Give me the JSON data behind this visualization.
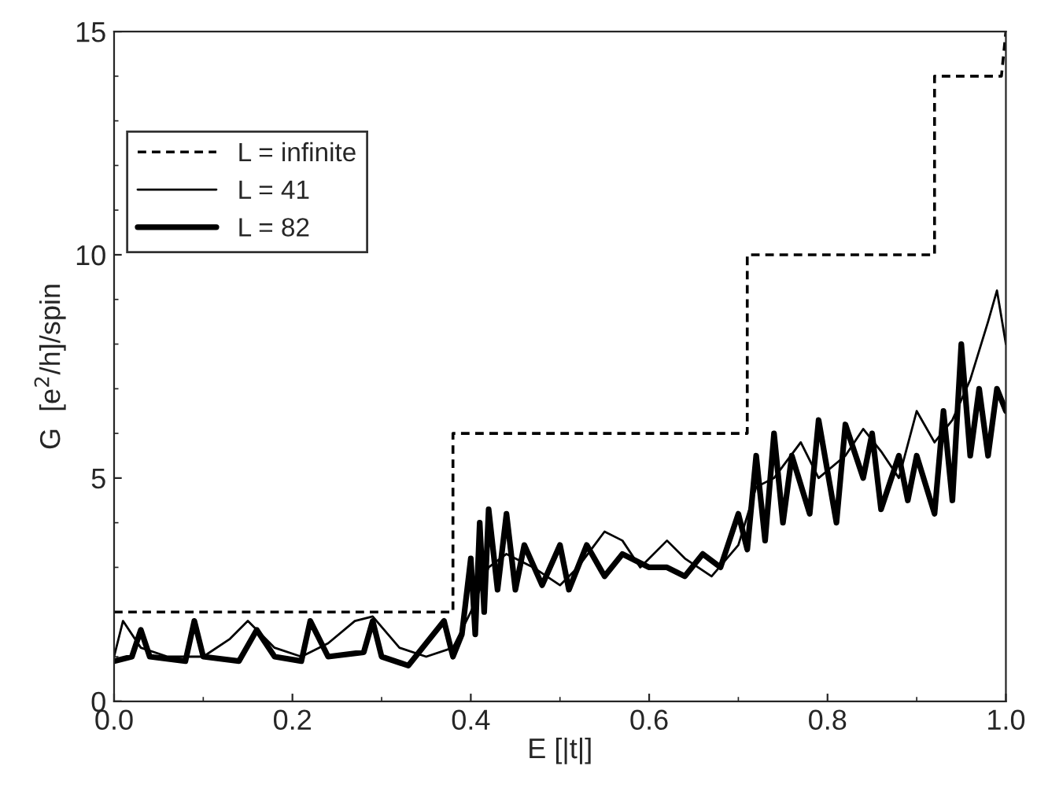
{
  "chart_data": {
    "type": "line",
    "xlabel": "E [|t|]",
    "ylabel": "G  [e$^{2}$/h]/spin",
    "xlim": [
      0.0,
      1.0
    ],
    "ylim": [
      0,
      15
    ],
    "xticks": [
      {
        "value": 0.0,
        "label": "0.0"
      },
      {
        "value": 0.2,
        "label": "0.2"
      },
      {
        "value": 0.4,
        "label": "0.4"
      },
      {
        "value": 0.6,
        "label": "0.6"
      },
      {
        "value": 0.8,
        "label": "0.8"
      },
      {
        "value": 1.0,
        "label": "1.0"
      }
    ],
    "yticks": [
      0,
      5,
      10,
      15
    ],
    "legend": "top left",
    "grid": false,
    "series": [
      {
        "name": "L = infinite",
        "color": "#000000",
        "line_style": "dashed",
        "x": [
          0,
          0.38,
          0.38,
          0.71,
          0.71,
          0.92,
          0.92,
          0.995,
          1.0
        ],
        "values": [
          2,
          2,
          6,
          6,
          10,
          10,
          14,
          14,
          15
        ]
      },
      {
        "name": "L = 41",
        "color": "#000000",
        "line_style": "solid",
        "x": [
          0,
          0.01,
          0.03,
          0.06,
          0.1,
          0.13,
          0.15,
          0.18,
          0.21,
          0.24,
          0.27,
          0.29,
          0.32,
          0.35,
          0.38,
          0.4,
          0.42,
          0.44,
          0.47,
          0.5,
          0.52,
          0.55,
          0.57,
          0.59,
          0.62,
          0.64,
          0.67,
          0.7,
          0.72,
          0.74,
          0.77,
          0.79,
          0.82,
          0.84,
          0.86,
          0.88,
          0.9,
          0.92,
          0.94,
          0.96,
          0.98,
          0.99,
          1.0
        ],
        "values": [
          1.0,
          1.8,
          1.2,
          1.0,
          1.0,
          1.4,
          1.8,
          1.2,
          1.0,
          1.3,
          1.8,
          1.9,
          1.2,
          1.0,
          1.2,
          2.0,
          3.0,
          3.3,
          3.0,
          2.6,
          3.0,
          3.8,
          3.6,
          3.0,
          3.6,
          3.2,
          2.8,
          3.5,
          4.8,
          5.0,
          5.8,
          5.0,
          5.5,
          6.1,
          5.6,
          5.0,
          6.5,
          5.8,
          6.3,
          7.2,
          8.5,
          9.2,
          8.0
        ]
      },
      {
        "name": "L = 82",
        "color": "#000000",
        "line_style": "solid",
        "x": [
          0,
          0.02,
          0.03,
          0.04,
          0.08,
          0.09,
          0.1,
          0.14,
          0.16,
          0.18,
          0.21,
          0.22,
          0.24,
          0.28,
          0.29,
          0.3,
          0.33,
          0.37,
          0.38,
          0.39,
          0.4,
          0.405,
          0.41,
          0.415,
          0.42,
          0.43,
          0.44,
          0.45,
          0.46,
          0.48,
          0.5,
          0.51,
          0.53,
          0.55,
          0.57,
          0.6,
          0.62,
          0.64,
          0.66,
          0.68,
          0.7,
          0.71,
          0.72,
          0.73,
          0.74,
          0.75,
          0.76,
          0.78,
          0.79,
          0.81,
          0.82,
          0.84,
          0.85,
          0.86,
          0.88,
          0.89,
          0.9,
          0.92,
          0.93,
          0.94,
          0.95,
          0.96,
          0.97,
          0.98,
          0.99,
          1.0
        ],
        "values": [
          0.9,
          1.0,
          1.6,
          1.0,
          0.9,
          1.8,
          1.0,
          0.9,
          1.6,
          1.0,
          0.9,
          1.8,
          1.0,
          1.1,
          1.8,
          1.0,
          0.8,
          1.8,
          1.0,
          1.5,
          3.2,
          1.5,
          4.0,
          2.0,
          4.3,
          2.5,
          4.2,
          2.5,
          3.5,
          2.6,
          3.5,
          2.5,
          3.5,
          2.8,
          3.3,
          3.0,
          3.0,
          2.8,
          3.3,
          3.0,
          4.2,
          3.4,
          5.5,
          3.6,
          6.0,
          4.0,
          5.5,
          4.2,
          6.3,
          4.0,
          6.2,
          5.0,
          6.0,
          4.3,
          5.5,
          4.5,
          5.5,
          4.2,
          6.5,
          4.5,
          8.0,
          5.5,
          7.0,
          5.5,
          7.0,
          6.5
        ]
      }
    ]
  }
}
